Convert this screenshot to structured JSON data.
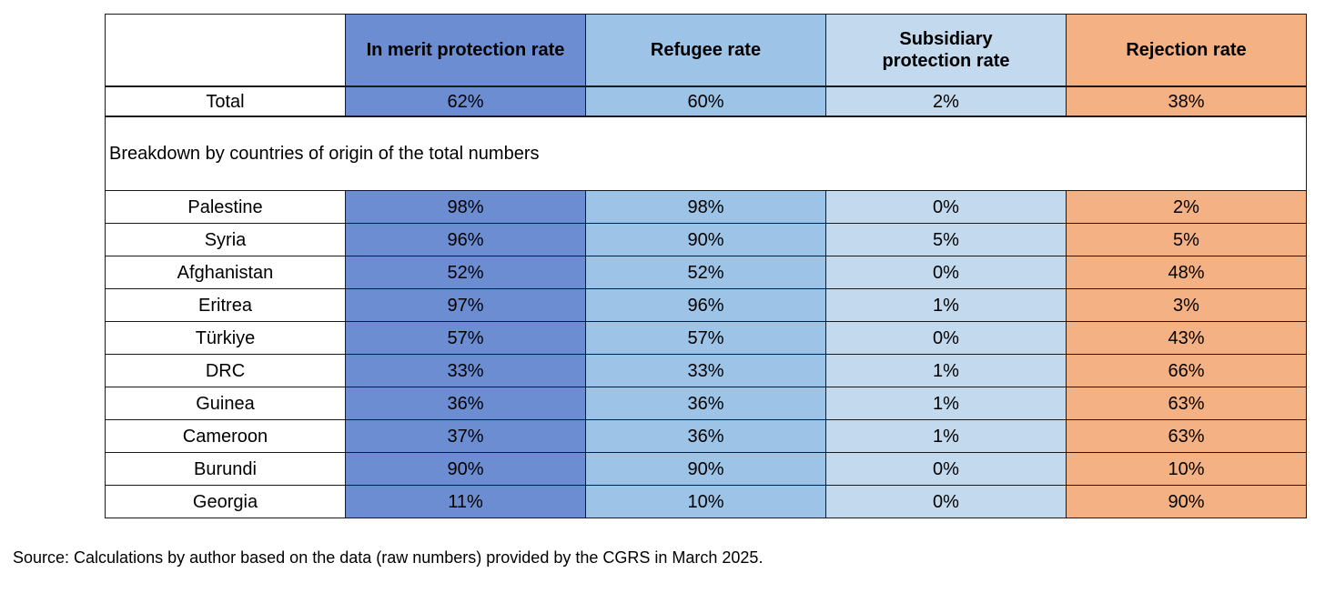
{
  "table": {
    "columns": [
      "",
      "In merit protection rate",
      "Refugee rate",
      "Subsidiary protection rate",
      "Rejection rate"
    ],
    "total": {
      "label": "Total",
      "values": [
        "62%",
        "60%",
        "2%",
        "38%"
      ]
    },
    "breakdown_label": "Breakdown by countries of origin of the total numbers",
    "rows": [
      {
        "label": "Palestine",
        "values": [
          "98%",
          "98%",
          "0%",
          "2%"
        ]
      },
      {
        "label": "Syria",
        "values": [
          "96%",
          "90%",
          "5%",
          "5%"
        ]
      },
      {
        "label": "Afghanistan",
        "values": [
          "52%",
          "52%",
          "0%",
          "48%"
        ]
      },
      {
        "label": "Eritrea",
        "values": [
          "97%",
          "96%",
          "1%",
          "3%"
        ]
      },
      {
        "label": "Türkiye",
        "values": [
          "57%",
          "57%",
          "0%",
          "43%"
        ]
      },
      {
        "label": "DRC",
        "values": [
          "33%",
          "33%",
          "1%",
          "66%"
        ]
      },
      {
        "label": "Guinea",
        "values": [
          "36%",
          "36%",
          "1%",
          "63%"
        ]
      },
      {
        "label": "Cameroon",
        "values": [
          "37%",
          "36%",
          "1%",
          "63%"
        ]
      },
      {
        "label": "Burundi",
        "values": [
          "90%",
          "90%",
          "0%",
          "10%"
        ]
      },
      {
        "label": "Georgia",
        "values": [
          "11%",
          "10%",
          "0%",
          "90%"
        ]
      }
    ]
  },
  "source_note": "Source: Calculations by author based on the data (raw numbers) provided by the CGRS in March 2025.",
  "colors": {
    "merit": "#6C8DD1",
    "refugee": "#9DC3E6",
    "subsidiary": "#C3D9EE",
    "rejection": "#F4B183",
    "border": "#1a1a1a"
  },
  "chart_data": {
    "type": "table",
    "columns": [
      "",
      "In merit protection rate",
      "Refugee rate",
      "Subsidiary protection rate",
      "Rejection rate"
    ],
    "rows": [
      [
        "Total",
        "62%",
        "60%",
        "2%",
        "38%"
      ],
      [
        "Breakdown by countries of origin of the total numbers",
        "",
        "",
        "",
        ""
      ],
      [
        "Palestine",
        "98%",
        "98%",
        "0%",
        "2%"
      ],
      [
        "Syria",
        "96%",
        "90%",
        "5%",
        "5%"
      ],
      [
        "Afghanistan",
        "52%",
        "52%",
        "0%",
        "48%"
      ],
      [
        "Eritrea",
        "97%",
        "96%",
        "1%",
        "3%"
      ],
      [
        "Türkiye",
        "57%",
        "57%",
        "0%",
        "43%"
      ],
      [
        "DRC",
        "33%",
        "33%",
        "1%",
        "66%"
      ],
      [
        "Guinea",
        "36%",
        "36%",
        "1%",
        "63%"
      ],
      [
        "Cameroon",
        "37%",
        "36%",
        "1%",
        "63%"
      ],
      [
        "Burundi",
        "90%",
        "90%",
        "0%",
        "10%"
      ],
      [
        "Georgia",
        "11%",
        "10%",
        "0%",
        "90%"
      ]
    ],
    "notes": "Source: Calculations by author based on the data (raw numbers) provided by the CGRS in March 2025."
  }
}
